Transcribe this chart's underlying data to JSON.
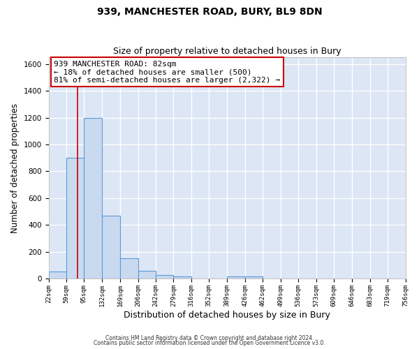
{
  "title": "939, MANCHESTER ROAD, BURY, BL9 8DN",
  "subtitle": "Size of property relative to detached houses in Bury",
  "xlabel": "Distribution of detached houses by size in Bury",
  "ylabel": "Number of detached properties",
  "bar_color": "#c9d9f0",
  "bar_edge_color": "#5b9bd5",
  "background_color": "#dce6f5",
  "grid_color": "#ffffff",
  "bins": [
    22,
    59,
    95,
    132,
    169,
    206,
    242,
    279,
    316,
    352,
    389,
    426,
    462,
    499,
    536,
    573,
    609,
    646,
    683,
    719,
    756
  ],
  "values": [
    50,
    900,
    1200,
    470,
    150,
    58,
    28,
    15,
    0,
    0,
    15,
    15,
    0,
    0,
    0,
    0,
    0,
    0,
    0,
    0
  ],
  "tick_labels": [
    "22sqm",
    "59sqm",
    "95sqm",
    "132sqm",
    "169sqm",
    "206sqm",
    "242sqm",
    "279sqm",
    "316sqm",
    "352sqm",
    "389sqm",
    "426sqm",
    "462sqm",
    "499sqm",
    "536sqm",
    "573sqm",
    "609sqm",
    "646sqm",
    "683sqm",
    "719sqm",
    "756sqm"
  ],
  "ylim": [
    0,
    1650
  ],
  "yticks": [
    0,
    200,
    400,
    600,
    800,
    1000,
    1200,
    1400,
    1600
  ],
  "vline_x": 82,
  "vline_color": "#cc0000",
  "annotation_text": "939 MANCHESTER ROAD: 82sqm\n← 18% of detached houses are smaller (500)\n81% of semi-detached houses are larger (2,322) →",
  "annotation_box_color": "#ffffff",
  "annotation_box_edge_color": "#cc0000",
  "footer1": "Contains HM Land Registry data © Crown copyright and database right 2024.",
  "footer2": "Contains public sector information licensed under the Open Government Licence v3.0."
}
